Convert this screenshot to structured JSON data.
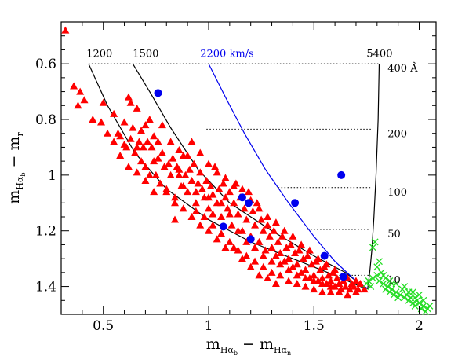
{
  "chart_data": {
    "type": "scatter",
    "xlim": [
      0.3,
      2.08
    ],
    "ylim": [
      1.5,
      0.45
    ],
    "y_inverted": true,
    "x_ticks": [
      0.5,
      1,
      1.5,
      2
    ],
    "x_tick_labels": [
      "0.5",
      "1",
      "1.5",
      "2"
    ],
    "y_ticks": [
      0.6,
      0.8,
      1.0,
      1.2,
      1.4
    ],
    "y_tick_labels": [
      "0.6",
      "0.8",
      "1",
      "1.2",
      "1.4"
    ],
    "xlabel": {
      "main": "m",
      "sub1": "Hα",
      "sub1b": "b",
      "dash": " − m",
      "sub2": "Hα",
      "sub2b": "n"
    },
    "ylabel": {
      "main": "m",
      "sub1": "Hα",
      "sub1b": "b",
      "dash": " − m",
      "sub2": "r"
    },
    "colors": {
      "triangles": "#ff0000",
      "circles": "#0000ee",
      "crosses": "#22dd22",
      "blue_curve": "#0000ee",
      "curves": "#000000"
    },
    "dotted_lines": [
      {
        "y": 0.6,
        "x_from": 0.43,
        "x_to": 1.81,
        "label": "400 Å"
      },
      {
        "y": 0.835,
        "x_from": 0.99,
        "x_to": 1.78,
        "label": "200"
      },
      {
        "y": 1.045,
        "x_from": 1.33,
        "x_to": 1.77,
        "label": "100"
      },
      {
        "y": 1.195,
        "x_from": 1.47,
        "x_to": 1.765,
        "label": "50"
      },
      {
        "y": 1.36,
        "x_from": 1.62,
        "x_to": 1.76,
        "label": "10"
      }
    ],
    "curve_labels": [
      {
        "text": "1200",
        "x": 0.42,
        "y": 0.565
      },
      {
        "text": "1500",
        "x": 0.64,
        "y": 0.565
      },
      {
        "text": "2200 km/s",
        "x": 0.96,
        "y": 0.565,
        "color": "blue"
      },
      {
        "text": "5400",
        "x": 1.75,
        "y": 0.565
      }
    ],
    "curves": [
      {
        "name": "1200",
        "points": [
          [
            0.43,
            0.6
          ],
          [
            0.52,
            0.75
          ],
          [
            0.65,
            0.92
          ],
          [
            0.8,
            1.05
          ],
          [
            1.0,
            1.16
          ],
          [
            1.2,
            1.24
          ],
          [
            1.4,
            1.3
          ],
          [
            1.6,
            1.36
          ],
          [
            1.75,
            1.41
          ]
        ]
      },
      {
        "name": "1500",
        "points": [
          [
            0.64,
            0.6
          ],
          [
            0.72,
            0.7
          ],
          [
            0.82,
            0.83
          ],
          [
            0.95,
            0.98
          ],
          [
            1.1,
            1.1
          ],
          [
            1.3,
            1.2
          ],
          [
            1.5,
            1.29
          ],
          [
            1.65,
            1.35
          ],
          [
            1.75,
            1.41
          ]
        ]
      },
      {
        "name": "2200 km/s",
        "points": [
          [
            1.0,
            0.6
          ],
          [
            1.08,
            0.72
          ],
          [
            1.17,
            0.85
          ],
          [
            1.27,
            0.98
          ],
          [
            1.38,
            1.1
          ],
          [
            1.5,
            1.22
          ],
          [
            1.6,
            1.31
          ],
          [
            1.7,
            1.38
          ],
          [
            1.76,
            1.41
          ]
        ]
      },
      {
        "name": "5400",
        "points": [
          [
            1.81,
            0.6
          ],
          [
            1.805,
            0.8
          ],
          [
            1.795,
            1.0
          ],
          [
            1.785,
            1.15
          ],
          [
            1.775,
            1.27
          ],
          [
            1.765,
            1.35
          ],
          [
            1.755,
            1.41
          ]
        ]
      }
    ],
    "circles": [
      [
        0.76,
        0.705
      ],
      [
        1.16,
        1.08
      ],
      [
        1.19,
        1.1
      ],
      [
        1.63,
        1.0
      ],
      [
        1.41,
        1.1
      ],
      [
        1.07,
        1.185
      ],
      [
        1.2,
        1.23
      ],
      [
        1.55,
        1.29
      ],
      [
        1.64,
        1.365
      ]
    ],
    "crosses": [
      [
        1.75,
        1.39
      ],
      [
        1.78,
        1.37
      ],
      [
        1.8,
        1.33
      ],
      [
        1.81,
        1.38
      ],
      [
        1.83,
        1.39
      ],
      [
        1.84,
        1.41
      ],
      [
        1.85,
        1.4
      ],
      [
        1.86,
        1.42
      ],
      [
        1.87,
        1.41
      ],
      [
        1.88,
        1.43
      ],
      [
        1.89,
        1.42
      ],
      [
        1.9,
        1.44
      ],
      [
        1.91,
        1.43
      ],
      [
        1.92,
        1.41
      ],
      [
        1.93,
        1.44
      ],
      [
        1.94,
        1.43
      ],
      [
        1.95,
        1.45
      ],
      [
        1.96,
        1.44
      ],
      [
        1.97,
        1.46
      ],
      [
        1.98,
        1.44
      ],
      [
        1.99,
        1.45
      ],
      [
        2.0,
        1.46
      ],
      [
        2.01,
        1.48
      ],
      [
        2.02,
        1.47
      ],
      [
        2.03,
        1.49
      ],
      [
        2.04,
        1.48
      ],
      [
        2.05,
        1.47
      ],
      [
        2.0,
        1.43
      ],
      [
        1.97,
        1.42
      ],
      [
        1.93,
        1.4
      ],
      [
        1.89,
        1.39
      ],
      [
        1.86,
        1.38
      ],
      [
        1.83,
        1.36
      ],
      [
        1.8,
        1.36
      ],
      [
        1.79,
        1.24
      ],
      [
        1.78,
        1.26
      ],
      [
        1.81,
        1.31
      ],
      [
        1.82,
        1.35
      ],
      [
        1.84,
        1.37
      ],
      [
        1.87,
        1.39
      ],
      [
        1.95,
        1.42
      ],
      [
        1.98,
        1.47
      ],
      [
        2.02,
        1.45
      ],
      [
        1.76,
        1.38
      ],
      [
        1.77,
        1.4
      ]
    ],
    "triangles": [
      [
        0.32,
        0.48
      ],
      [
        0.36,
        0.68
      ],
      [
        0.39,
        0.7
      ],
      [
        0.38,
        0.75
      ],
      [
        0.41,
        0.73
      ],
      [
        0.45,
        0.8
      ],
      [
        0.49,
        0.81
      ],
      [
        0.52,
        0.85
      ],
      [
        0.55,
        0.88
      ],
      [
        0.57,
        0.85
      ],
      [
        0.58,
        0.86
      ],
      [
        0.6,
        0.89
      ],
      [
        0.61,
        0.9
      ],
      [
        0.62,
        0.72
      ],
      [
        0.63,
        0.74
      ],
      [
        0.63,
        0.87
      ],
      [
        0.65,
        0.92
      ],
      [
        0.66,
        0.9
      ],
      [
        0.67,
        0.88
      ],
      [
        0.68,
        0.95
      ],
      [
        0.69,
        0.9
      ],
      [
        0.7,
        0.82
      ],
      [
        0.7,
        0.97
      ],
      [
        0.71,
        0.88
      ],
      [
        0.72,
        1.0
      ],
      [
        0.73,
        0.9
      ],
      [
        0.74,
        0.95
      ],
      [
        0.75,
        1.0
      ],
      [
        0.76,
        0.88
      ],
      [
        0.77,
        1.03
      ],
      [
        0.78,
        0.92
      ],
      [
        0.79,
        0.97
      ],
      [
        0.8,
        1.05
      ],
      [
        0.81,
        0.96
      ],
      [
        0.82,
        1.0
      ],
      [
        0.83,
        0.94
      ],
      [
        0.84,
        1.08
      ],
      [
        0.85,
        0.97
      ],
      [
        0.86,
        0.98
      ],
      [
        0.87,
        1.04
      ],
      [
        0.88,
        0.93
      ],
      [
        0.89,
        1.0
      ],
      [
        0.9,
        1.06
      ],
      [
        0.91,
        0.98
      ],
      [
        0.92,
        1.02
      ],
      [
        0.93,
        0.96
      ],
      [
        0.94,
        1.1
      ],
      [
        0.95,
        1.03
      ],
      [
        0.96,
        0.99
      ],
      [
        0.97,
        1.05
      ],
      [
        0.98,
        1.08
      ],
      [
        0.99,
        1.02
      ],
      [
        1.0,
        1.12
      ],
      [
        1.01,
        1.04
      ],
      [
        1.02,
        1.07
      ],
      [
        1.03,
        0.97
      ],
      [
        1.04,
        1.1
      ],
      [
        1.05,
        1.05
      ],
      [
        1.06,
        1.15
      ],
      [
        1.07,
        1.03
      ],
      [
        1.08,
        1.08
      ],
      [
        1.09,
        1.12
      ],
      [
        1.1,
        1.06
      ],
      [
        1.11,
        1.18
      ],
      [
        1.12,
        1.1
      ],
      [
        1.13,
        1.03
      ],
      [
        1.14,
        1.14
      ],
      [
        1.15,
        1.08
      ],
      [
        1.16,
        1.2
      ],
      [
        1.17,
        1.12
      ],
      [
        1.18,
        1.16
      ],
      [
        1.19,
        1.06
      ],
      [
        1.2,
        1.22
      ],
      [
        1.21,
        1.13
      ],
      [
        1.22,
        1.18
      ],
      [
        1.23,
        1.1
      ],
      [
        1.24,
        1.24
      ],
      [
        1.25,
        1.16
      ],
      [
        1.26,
        1.2
      ],
      [
        1.27,
        1.27
      ],
      [
        1.28,
        1.18
      ],
      [
        1.29,
        1.22
      ],
      [
        1.3,
        1.26
      ],
      [
        1.31,
        1.2
      ],
      [
        1.32,
        1.29
      ],
      [
        1.33,
        1.24
      ],
      [
        1.34,
        1.28
      ],
      [
        1.35,
        1.22
      ],
      [
        1.36,
        1.31
      ],
      [
        1.37,
        1.26
      ],
      [
        1.38,
        1.3
      ],
      [
        1.39,
        1.25
      ],
      [
        1.4,
        1.33
      ],
      [
        1.41,
        1.28
      ],
      [
        1.42,
        1.32
      ],
      [
        1.43,
        1.27
      ],
      [
        1.44,
        1.35
      ],
      [
        1.45,
        1.3
      ],
      [
        1.46,
        1.34
      ],
      [
        1.47,
        1.29
      ],
      [
        1.48,
        1.37
      ],
      [
        1.49,
        1.32
      ],
      [
        1.5,
        1.36
      ],
      [
        1.51,
        1.31
      ],
      [
        1.52,
        1.38
      ],
      [
        1.53,
        1.34
      ],
      [
        1.54,
        1.37
      ],
      [
        1.55,
        1.33
      ],
      [
        1.56,
        1.39
      ],
      [
        1.57,
        1.36
      ],
      [
        1.58,
        1.38
      ],
      [
        1.59,
        1.35
      ],
      [
        1.6,
        1.4
      ],
      [
        1.61,
        1.37
      ],
      [
        1.62,
        1.39
      ],
      [
        1.63,
        1.41
      ],
      [
        1.64,
        1.38
      ],
      [
        1.65,
        1.4
      ],
      [
        1.66,
        1.37
      ],
      [
        1.67,
        1.41
      ],
      [
        1.68,
        1.39
      ],
      [
        1.69,
        1.4
      ],
      [
        1.7,
        1.38
      ],
      [
        1.71,
        1.41
      ],
      [
        1.72,
        1.39
      ],
      [
        0.5,
        0.74
      ],
      [
        0.55,
        0.78
      ],
      [
        0.6,
        0.81
      ],
      [
        0.64,
        0.83
      ],
      [
        0.66,
        0.76
      ],
      [
        0.68,
        0.84
      ],
      [
        0.72,
        0.8
      ],
      [
        0.74,
        0.86
      ],
      [
        0.78,
        0.82
      ],
      [
        0.82,
        0.88
      ],
      [
        0.86,
        0.91
      ],
      [
        0.9,
        0.93
      ],
      [
        0.92,
        0.88
      ],
      [
        0.96,
        0.92
      ],
      [
        1.0,
        0.96
      ],
      [
        1.04,
        0.99
      ],
      [
        1.08,
        1.01
      ],
      [
        1.12,
        1.04
      ],
      [
        1.16,
        1.05
      ],
      [
        1.2,
        1.09
      ],
      [
        1.24,
        1.12
      ],
      [
        1.28,
        1.15
      ],
      [
        1.32,
        1.17
      ],
      [
        1.36,
        1.2
      ],
      [
        1.4,
        1.22
      ],
      [
        1.44,
        1.25
      ],
      [
        1.48,
        1.27
      ],
      [
        1.52,
        1.3
      ],
      [
        1.56,
        1.32
      ],
      [
        1.6,
        1.34
      ],
      [
        0.98,
        1.15
      ],
      [
        1.02,
        1.18
      ],
      [
        1.06,
        1.21
      ],
      [
        1.1,
        1.24
      ],
      [
        1.14,
        1.27
      ],
      [
        1.18,
        1.29
      ],
      [
        1.22,
        1.31
      ],
      [
        1.26,
        1.33
      ],
      [
        1.3,
        1.35
      ],
      [
        1.34,
        1.36
      ],
      [
        1.38,
        1.38
      ],
      [
        1.42,
        1.39
      ],
      [
        1.46,
        1.4
      ],
      [
        1.5,
        1.41
      ],
      [
        1.54,
        1.42
      ],
      [
        1.58,
        1.42
      ],
      [
        1.0,
        1.2
      ],
      [
        1.04,
        1.23
      ],
      [
        0.88,
        1.12
      ],
      [
        0.92,
        1.15
      ],
      [
        0.84,
        1.1
      ],
      [
        0.8,
        1.06
      ],
      [
        1.12,
        1.26
      ],
      [
        1.16,
        1.3
      ],
      [
        1.2,
        1.33
      ],
      [
        1.24,
        1.36
      ],
      [
        1.28,
        1.37
      ],
      [
        1.32,
        1.39
      ],
      [
        0.74,
        1.06
      ],
      [
        0.7,
        1.02
      ],
      [
        0.96,
        1.18
      ],
      [
        1.08,
        1.26
      ],
      [
        1.06,
        1.1
      ],
      [
        1.14,
        1.2
      ],
      [
        1.22,
        1.26
      ],
      [
        1.3,
        1.31
      ],
      [
        1.38,
        1.34
      ],
      [
        1.46,
        1.37
      ],
      [
        1.54,
        1.39
      ],
      [
        1.62,
        1.42
      ],
      [
        1.66,
        1.43
      ],
      [
        1.7,
        1.42
      ],
      [
        1.74,
        1.41
      ],
      [
        0.62,
        0.97
      ],
      [
        0.58,
        0.93
      ],
      [
        0.66,
        0.99
      ],
      [
        0.84,
        1.16
      ],
      [
        0.88,
        1.04
      ],
      [
        0.76,
        0.94
      ],
      [
        1.1,
        1.14
      ],
      [
        1.18,
        1.24
      ],
      [
        1.26,
        1.29
      ],
      [
        1.34,
        1.32
      ],
      [
        1.42,
        1.36
      ],
      [
        1.5,
        1.38
      ],
      [
        1.58,
        1.4
      ],
      [
        0.94,
        1.13
      ],
      [
        1.02,
        1.14
      ],
      [
        0.86,
        1.0
      ],
      [
        0.94,
        1.06
      ],
      [
        1.0,
        1.08
      ]
    ]
  }
}
